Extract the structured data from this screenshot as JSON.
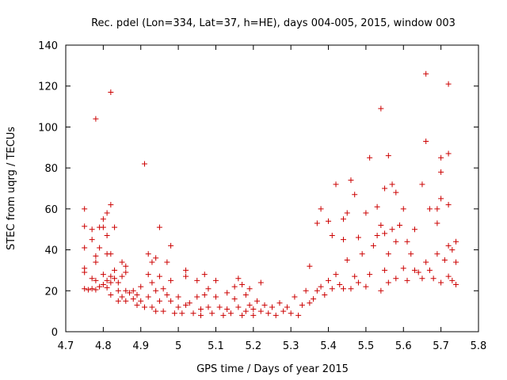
{
  "chart_data": {
    "type": "scatter",
    "title": "Rec. pdel (Lon=334, Lat=37, h=HE), days 004-005, 2015, window 003",
    "xlabel": "GPS time / Days of year 2015",
    "ylabel": "STEC from uqrg / TECUs",
    "xlim": [
      4.7,
      5.8
    ],
    "ylim": [
      0,
      140
    ],
    "xticks": [
      "4.7",
      "4.8",
      "4.9",
      "5",
      "5.1",
      "5.2",
      "5.3",
      "5.4",
      "5.5",
      "5.6",
      "5.7",
      "5.8"
    ],
    "xtick_values": [
      4.7,
      4.8,
      4.9,
      5.0,
      5.1,
      5.2,
      5.3,
      5.4,
      5.5,
      5.6,
      5.7,
      5.8
    ],
    "yticks": [
      "0",
      "20",
      "40",
      "60",
      "80",
      "100",
      "120",
      "140"
    ],
    "ytick_values": [
      0,
      20,
      40,
      60,
      80,
      100,
      120,
      140
    ],
    "marker": "+",
    "color": "#cc0000",
    "series": [
      {
        "name": "STEC",
        "points": [
          [
            4.75,
            60
          ],
          [
            4.75,
            51.5
          ],
          [
            4.75,
            41
          ],
          [
            4.75,
            31
          ],
          [
            4.75,
            29
          ],
          [
            4.75,
            21
          ],
          [
            4.76,
            20.5
          ],
          [
            4.77,
            50
          ],
          [
            4.77,
            45
          ],
          [
            4.77,
            26
          ],
          [
            4.77,
            21
          ],
          [
            4.78,
            104
          ],
          [
            4.78,
            37
          ],
          [
            4.78,
            34
          ],
          [
            4.78,
            25
          ],
          [
            4.78,
            20.5
          ],
          [
            4.79,
            51
          ],
          [
            4.79,
            41
          ],
          [
            4.79,
            22
          ],
          [
            4.8,
            55
          ],
          [
            4.8,
            51
          ],
          [
            4.8,
            28
          ],
          [
            4.8,
            23
          ],
          [
            4.81,
            58
          ],
          [
            4.81,
            47
          ],
          [
            4.81,
            38
          ],
          [
            4.81,
            25
          ],
          [
            4.81,
            21.5
          ],
          [
            4.82,
            117
          ],
          [
            4.82,
            62
          ],
          [
            4.82,
            38
          ],
          [
            4.82,
            27
          ],
          [
            4.82,
            24
          ],
          [
            4.82,
            18
          ],
          [
            4.83,
            51
          ],
          [
            4.83,
            30
          ],
          [
            4.83,
            26
          ],
          [
            4.84,
            24
          ],
          [
            4.84,
            20
          ],
          [
            4.84,
            15
          ],
          [
            4.85,
            34
          ],
          [
            4.85,
            27
          ],
          [
            4.85,
            17
          ],
          [
            4.86,
            32
          ],
          [
            4.86,
            29
          ],
          [
            4.86,
            20
          ],
          [
            4.86,
            15
          ],
          [
            4.87,
            19
          ],
          [
            4.88,
            20
          ],
          [
            4.88,
            16
          ],
          [
            4.89,
            18
          ],
          [
            4.89,
            13
          ],
          [
            4.9,
            22
          ],
          [
            4.9,
            15
          ],
          [
            4.91,
            82
          ],
          [
            4.91,
            12
          ],
          [
            4.92,
            38
          ],
          [
            4.92,
            28
          ],
          [
            4.92,
            17
          ],
          [
            4.93,
            34
          ],
          [
            4.93,
            24
          ],
          [
            4.93,
            12
          ],
          [
            4.94,
            36
          ],
          [
            4.94,
            20
          ],
          [
            4.94,
            10
          ],
          [
            4.95,
            51
          ],
          [
            4.95,
            27
          ],
          [
            4.95,
            15
          ],
          [
            4.96,
            21
          ],
          [
            4.96,
            10
          ],
          [
            4.97,
            34
          ],
          [
            4.97,
            18
          ],
          [
            4.98,
            42
          ],
          [
            4.98,
            25
          ],
          [
            4.98,
            15
          ],
          [
            4.99,
            9
          ],
          [
            5.0,
            17
          ],
          [
            5.0,
            12
          ],
          [
            5.01,
            9
          ],
          [
            5.02,
            30
          ],
          [
            5.02,
            27
          ],
          [
            5.02,
            13
          ],
          [
            5.03,
            14
          ],
          [
            5.04,
            9
          ],
          [
            5.05,
            25
          ],
          [
            5.05,
            17
          ],
          [
            5.06,
            11
          ],
          [
            5.06,
            8
          ],
          [
            5.07,
            28
          ],
          [
            5.07,
            18
          ],
          [
            5.08,
            21
          ],
          [
            5.08,
            12
          ],
          [
            5.09,
            9
          ],
          [
            5.1,
            25
          ],
          [
            5.1,
            17
          ],
          [
            5.11,
            12
          ],
          [
            5.12,
            8
          ],
          [
            5.13,
            19
          ],
          [
            5.13,
            11
          ],
          [
            5.14,
            9
          ],
          [
            5.15,
            22
          ],
          [
            5.15,
            16
          ],
          [
            5.16,
            26
          ],
          [
            5.16,
            12
          ],
          [
            5.17,
            23
          ],
          [
            5.17,
            8
          ],
          [
            5.18,
            18
          ],
          [
            5.18,
            10
          ],
          [
            5.19,
            21
          ],
          [
            5.19,
            13
          ],
          [
            5.2,
            11
          ],
          [
            5.2,
            8
          ],
          [
            5.21,
            15
          ],
          [
            5.22,
            24
          ],
          [
            5.22,
            10
          ],
          [
            5.23,
            13
          ],
          [
            5.24,
            9
          ],
          [
            5.25,
            12
          ],
          [
            5.26,
            8
          ],
          [
            5.27,
            14
          ],
          [
            5.28,
            10
          ],
          [
            5.29,
            12
          ],
          [
            5.3,
            9
          ],
          [
            5.31,
            17
          ],
          [
            5.32,
            8
          ],
          [
            5.33,
            13
          ],
          [
            5.34,
            20
          ],
          [
            5.35,
            32
          ],
          [
            5.35,
            14
          ],
          [
            5.36,
            16
          ],
          [
            5.37,
            53
          ],
          [
            5.37,
            20
          ],
          [
            5.38,
            60
          ],
          [
            5.38,
            22
          ],
          [
            5.39,
            18
          ],
          [
            5.4,
            54
          ],
          [
            5.4,
            25
          ],
          [
            5.41,
            47
          ],
          [
            5.41,
            21
          ],
          [
            5.42,
            72
          ],
          [
            5.42,
            28
          ],
          [
            5.43,
            23
          ],
          [
            5.44,
            55
          ],
          [
            5.44,
            45
          ],
          [
            5.44,
            21
          ],
          [
            5.45,
            58
          ],
          [
            5.45,
            35
          ],
          [
            5.46,
            74
          ],
          [
            5.46,
            21
          ],
          [
            5.47,
            67
          ],
          [
            5.47,
            27
          ],
          [
            5.48,
            46
          ],
          [
            5.48,
            24
          ],
          [
            5.49,
            38
          ],
          [
            5.5,
            58
          ],
          [
            5.5,
            22
          ],
          [
            5.51,
            85
          ],
          [
            5.51,
            28
          ],
          [
            5.52,
            42
          ],
          [
            5.53,
            61
          ],
          [
            5.53,
            47
          ],
          [
            5.54,
            109
          ],
          [
            5.54,
            52
          ],
          [
            5.54,
            20
          ],
          [
            5.55,
            70
          ],
          [
            5.55,
            48
          ],
          [
            5.55,
            30
          ],
          [
            5.56,
            86
          ],
          [
            5.56,
            38
          ],
          [
            5.56,
            24
          ],
          [
            5.57,
            72
          ],
          [
            5.57,
            50
          ],
          [
            5.58,
            68
          ],
          [
            5.58,
            44
          ],
          [
            5.58,
            26
          ],
          [
            5.59,
            52
          ],
          [
            5.6,
            60
          ],
          [
            5.6,
            31
          ],
          [
            5.61,
            44
          ],
          [
            5.61,
            25
          ],
          [
            5.62,
            38
          ],
          [
            5.63,
            50
          ],
          [
            5.63,
            30
          ],
          [
            5.64,
            29
          ],
          [
            5.65,
            72
          ],
          [
            5.65,
            26
          ],
          [
            5.66,
            126
          ],
          [
            5.66,
            93
          ],
          [
            5.66,
            34
          ],
          [
            5.67,
            60
          ],
          [
            5.67,
            30
          ],
          [
            5.68,
            26
          ],
          [
            5.69,
            60
          ],
          [
            5.69,
            53
          ],
          [
            5.69,
            38
          ],
          [
            5.7,
            85
          ],
          [
            5.7,
            78
          ],
          [
            5.7,
            65
          ],
          [
            5.7,
            24
          ],
          [
            5.71,
            35
          ],
          [
            5.72,
            121
          ],
          [
            5.72,
            87
          ],
          [
            5.72,
            62
          ],
          [
            5.72,
            42
          ],
          [
            5.72,
            27
          ],
          [
            5.73,
            40
          ],
          [
            5.73,
            25
          ],
          [
            5.74,
            44
          ],
          [
            5.74,
            34
          ],
          [
            5.74,
            23
          ]
        ]
      }
    ]
  }
}
